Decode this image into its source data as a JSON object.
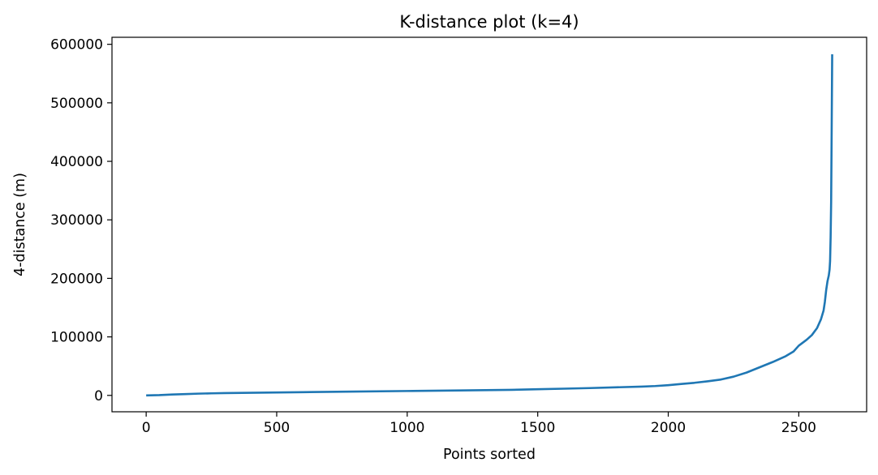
{
  "chart_data": {
    "type": "line",
    "title": "K-distance plot (k=4)",
    "xlabel": "Points sorted",
    "ylabel": "4-distance (m)",
    "xlim": [
      -131,
      2760
    ],
    "ylim": [
      -28000,
      612000
    ],
    "xticks": [
      0,
      500,
      1000,
      1500,
      2000,
      2500
    ],
    "yticks": [
      0,
      100000,
      200000,
      300000,
      400000,
      500000,
      600000
    ],
    "grid": false,
    "line_color": "#1f77b4",
    "series": [
      {
        "x": [
          0,
          50,
          100,
          150,
          200,
          250,
          300,
          400,
          500,
          600,
          800,
          1000,
          1200,
          1400,
          1500,
          1600,
          1700,
          1800,
          1900,
          1950,
          2000,
          2050,
          2100,
          2150,
          2200,
          2250,
          2300,
          2350,
          2400,
          2450,
          2480,
          2500,
          2530,
          2550,
          2570,
          2585,
          2595,
          2600,
          2605,
          2610,
          2615,
          2618,
          2620,
          2622,
          2624,
          2626,
          2628
        ],
        "y": [
          0,
          500,
          1500,
          2200,
          3000,
          3500,
          4000,
          4500,
          5000,
          5500,
          6500,
          7500,
          8500,
          9500,
          10500,
          11500,
          12500,
          13800,
          15000,
          16000,
          17500,
          19500,
          21500,
          24000,
          27000,
          32000,
          39000,
          48000,
          57000,
          67000,
          75000,
          85000,
          95000,
          103000,
          115000,
          130000,
          145000,
          160000,
          180000,
          195000,
          205000,
          215000,
          230000,
          270000,
          330000,
          450000,
          583000
        ]
      }
    ]
  }
}
